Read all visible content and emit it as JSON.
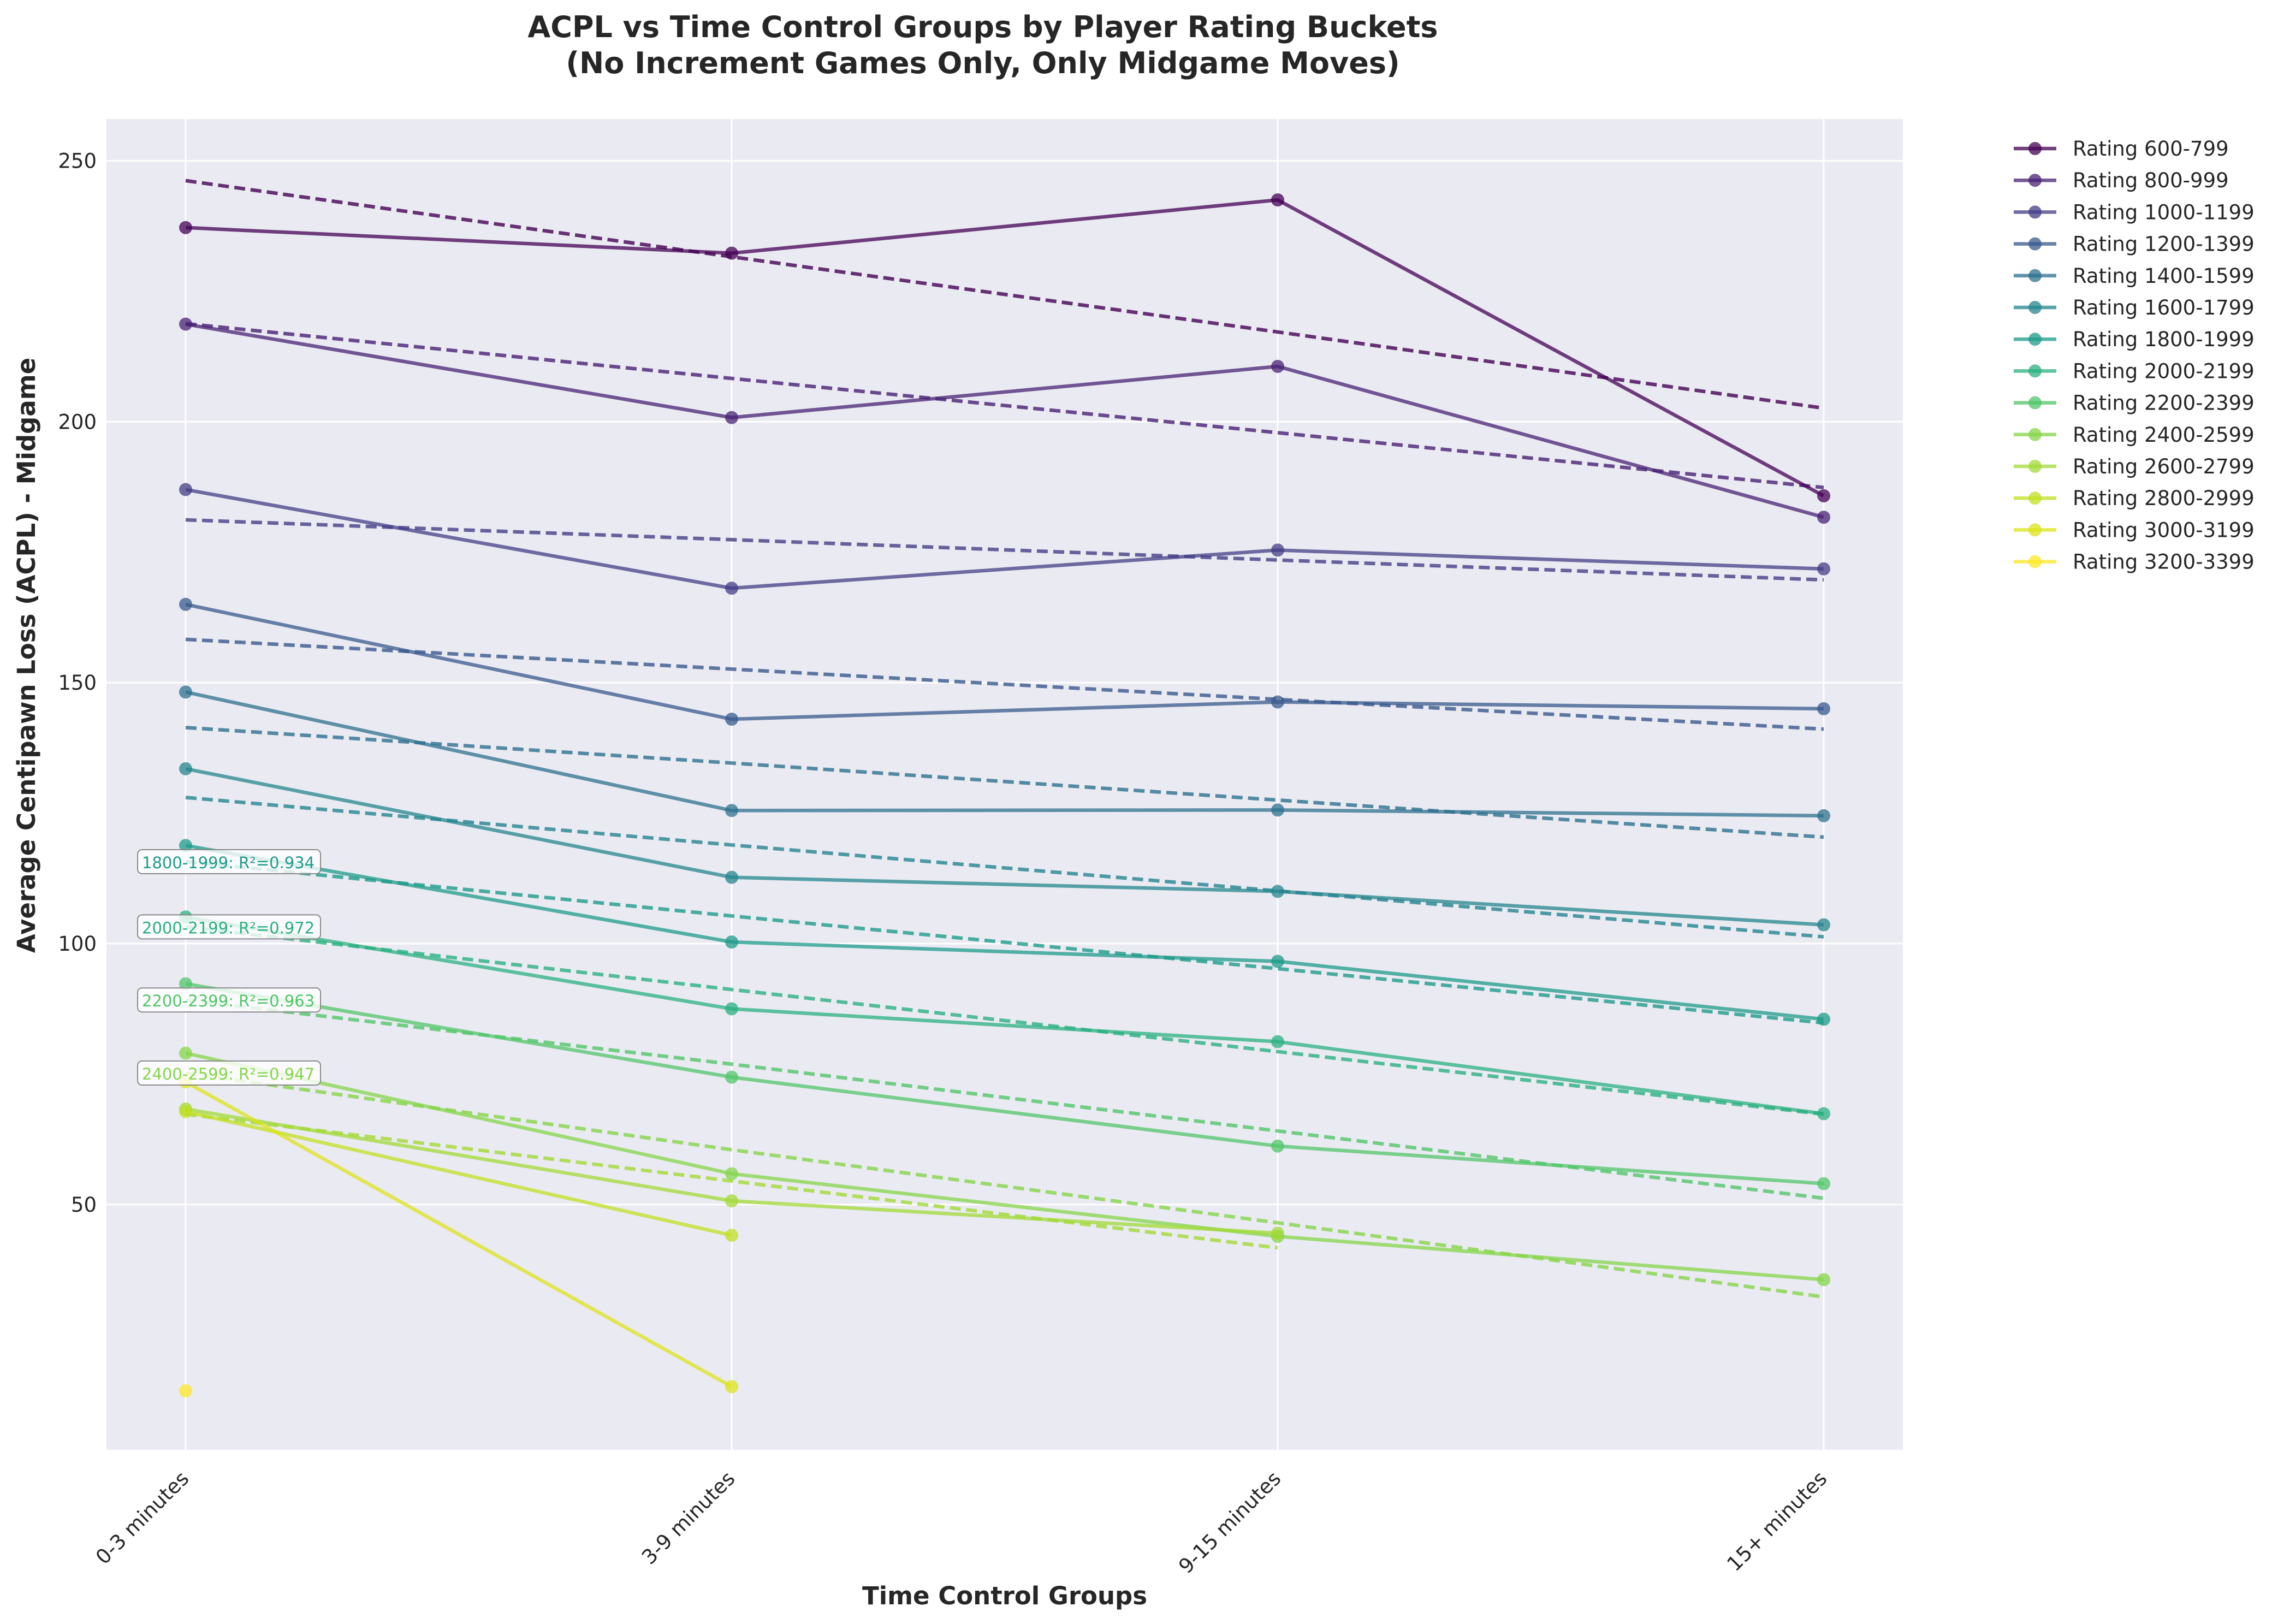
{
  "chart_data": {
    "type": "line",
    "title": "ACPL vs Time Control Groups by Player Rating Buckets",
    "subtitle": "(No Increment Games Only, Only Midgame Moves)",
    "xlabel": "Time Control Groups",
    "ylabel": "Average Centipawn Loss (ACPL) - Midgame",
    "categories": [
      "0-3 minutes",
      "3-9 minutes",
      "9-15 minutes",
      "15+ minutes"
    ],
    "ylim": [
      3,
      258
    ],
    "yticks": [
      50,
      100,
      150,
      200,
      250
    ],
    "grid": true,
    "legend_position": "outside-right",
    "series": [
      {
        "name": "Rating 600-799",
        "color": "#440154",
        "values": [
          237.2,
          232.3,
          242.5,
          185.8
        ],
        "trend": [
          246.2,
          231.6,
          217.2,
          202.6
        ]
      },
      {
        "name": "Rating 800-999",
        "color": "#482173",
        "values": [
          218.7,
          200.8,
          210.6,
          181.7
        ],
        "trend": [
          218.8,
          208.3,
          197.9,
          187.4
        ]
      },
      {
        "name": "Rating 1000-1199",
        "color": "#433e85",
        "values": [
          187.0,
          168.1,
          175.4,
          171.8
        ],
        "trend": [
          181.2,
          177.4,
          173.5,
          169.7
        ]
      },
      {
        "name": "Rating 1200-1399",
        "color": "#38598c",
        "values": [
          165.0,
          143.0,
          146.3,
          145.0
        ],
        "trend": [
          158.3,
          152.6,
          146.8,
          141.1
        ]
      },
      {
        "name": "Rating 1400-1599",
        "color": "#2d708e",
        "values": [
          148.2,
          125.5,
          125.6,
          124.5
        ],
        "trend": [
          141.4,
          134.6,
          127.5,
          120.4
        ]
      },
      {
        "name": "Rating 1600-1799",
        "color": "#25858e",
        "values": [
          133.5,
          112.7,
          110.0,
          103.6
        ],
        "trend": [
          128.0,
          118.9,
          110.1,
          101.3
        ]
      },
      {
        "name": "Rating 1800-1999",
        "color": "#1e9b8a",
        "values": [
          118.8,
          100.3,
          96.6,
          85.5
        ],
        "trend": [
          115.7,
          105.3,
          95.2,
          84.8
        ],
        "r2": "1800-1999: R²=0.934"
      },
      {
        "name": "Rating 2000-2199",
        "color": "#2ab07f",
        "values": [
          105.1,
          87.5,
          81.2,
          67.4
        ],
        "trend": [
          103.2,
          91.2,
          79.3,
          67.3
        ],
        "r2": "2000-2199: R²=0.972"
      },
      {
        "name": "Rating 2200-2399",
        "color": "#52c569",
        "values": [
          92.3,
          74.4,
          61.2,
          54.0
        ],
        "trend": [
          89.2,
          76.9,
          64.1,
          51.2
        ],
        "r2": "2200-2399: R²=0.963"
      },
      {
        "name": "Rating 2400-2599",
        "color": "#86d549",
        "values": [
          79.0,
          55.9,
          43.9,
          35.6
        ],
        "trend": [
          75.2,
          60.5,
          46.5,
          32.3
        ],
        "r2": "2400-2599: R²=0.947"
      },
      {
        "name": "Rating 2600-2799",
        "color": "#a2da37",
        "values": [
          68.3,
          50.7,
          44.5,
          null
        ],
        "trend": [
          67.3,
          54.5,
          41.7,
          null
        ]
      },
      {
        "name": "Rating 2800-2999",
        "color": "#c2df23",
        "values": [
          67.8,
          44.1,
          null,
          null
        ],
        "trend": [
          null,
          null,
          null,
          null
        ]
      },
      {
        "name": "Rating 3000-3199",
        "color": "#dde318",
        "values": [
          73.5,
          15.1,
          null,
          null
        ],
        "trend": [
          null,
          null,
          null,
          null
        ]
      },
      {
        "name": "Rating 3200-3399",
        "color": "#fde725",
        "values": [
          14.3,
          null,
          null,
          null
        ],
        "trend": [
          null,
          null,
          null,
          null
        ]
      }
    ]
  }
}
